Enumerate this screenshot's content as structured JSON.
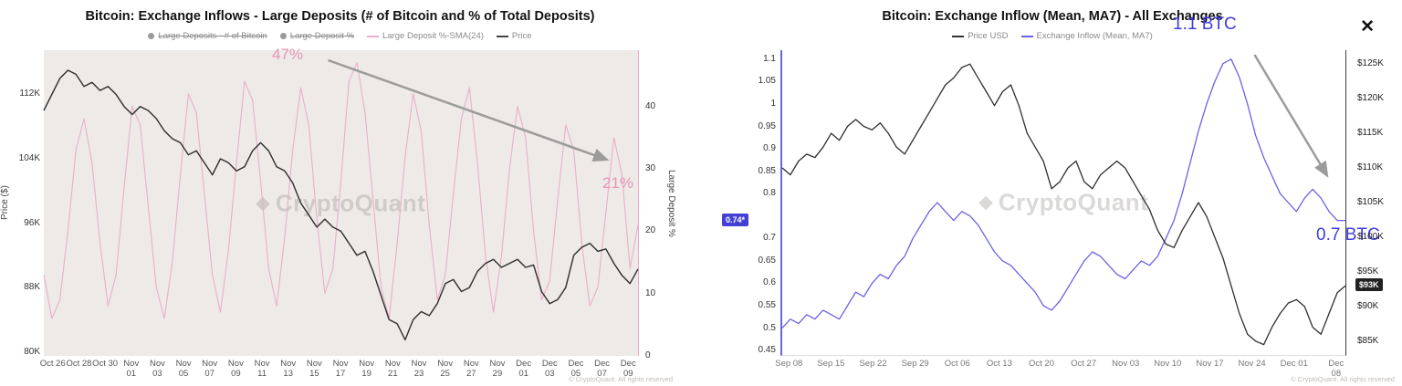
{
  "page": {
    "watermark": "CryptoQuant",
    "copyright": "© CryptoQuant. All rights reserved",
    "icons": {
      "close": "✕",
      "logo": "◆"
    }
  },
  "chart_data": [
    {
      "type": "line",
      "title": "Bitcoin: Exchange Inflows - Large Deposits (# of Bitcoin and % of Total Deposits)",
      "legend": [
        {
          "label": "Large Deposits - # of Bitcoin",
          "marker": "dot",
          "color": "#9a9a9a",
          "struck": true
        },
        {
          "label": "Large Deposit %",
          "marker": "dot",
          "color": "#9a9a9a",
          "struck": true
        },
        {
          "label": "Large Deposit %-SMA(24)",
          "marker": "line",
          "color": "#ecaecb",
          "struck": false
        },
        {
          "label": "Price",
          "marker": "line",
          "color": "#444444",
          "struck": false
        }
      ],
      "x_tick_inline_prefix": "Oct",
      "x_ticks": [
        "Oct 26",
        "Oct 28",
        "Oct 30",
        "Nov 01",
        "Nov 03",
        "Nov 05",
        "Nov 07",
        "Nov 09",
        "Nov 11",
        "Nov 13",
        "Nov 15",
        "Nov 17",
        "Nov 19",
        "Nov 21",
        "Nov 23",
        "Nov 25",
        "Nov 27",
        "Nov 29",
        "Dec 01",
        "Dec 03",
        "Dec 05",
        "Dec 07",
        "Dec 09"
      ],
      "y_axis_left": {
        "title": "Price ($)",
        "min": 79.5,
        "max": 117.5,
        "ticks": [
          {
            "label": "112K",
            "value": 112
          },
          {
            "label": "104K",
            "value": 104
          },
          {
            "label": "96K",
            "value": 96
          },
          {
            "label": "88K",
            "value": 88
          },
          {
            "label": "80K",
            "value": 80
          }
        ]
      },
      "y_axis_right": {
        "title": "Large Deposit %",
        "min": 0,
        "max": 49,
        "ticks": [
          {
            "label": "40",
            "value": 40
          },
          {
            "label": "30",
            "value": 30
          },
          {
            "label": "20",
            "value": 20
          },
          {
            "label": "10",
            "value": 10
          },
          {
            "label": "0",
            "value": 0
          }
        ]
      },
      "series": [
        {
          "name": "Large Deposit %-SMA(24)",
          "axis": "right",
          "color": "#ecaecb",
          "width": 1.1,
          "values": [
            13,
            6,
            9,
            20,
            33,
            38,
            31,
            18,
            8,
            13,
            27,
            40,
            37,
            24,
            11,
            6,
            15,
            29,
            42,
            39,
            26,
            13,
            7,
            17,
            31,
            44,
            41,
            28,
            14,
            8,
            19,
            33,
            43,
            37,
            22,
            10,
            14,
            28,
            44,
            47,
            39,
            25,
            11,
            6,
            18,
            32,
            42,
            36,
            21,
            9,
            13,
            26,
            38,
            43,
            31,
            16,
            7,
            16,
            30,
            40,
            35,
            20,
            9,
            12,
            25,
            37,
            33,
            18,
            8,
            11,
            23,
            35,
            29,
            14,
            21
          ]
        },
        {
          "name": "Price",
          "axis": "left",
          "color": "#2e2e2e",
          "width": 1.4,
          "values": [
            110,
            112,
            114,
            115,
            114.5,
            113,
            113.5,
            112.5,
            113,
            112,
            110.5,
            109.5,
            110.5,
            110,
            109,
            107.5,
            106.5,
            106,
            104.5,
            105,
            103.5,
            102,
            104,
            103.5,
            102.5,
            103,
            105,
            106,
            105,
            103,
            102.5,
            101,
            98.5,
            97,
            95.5,
            96.5,
            95.5,
            95,
            93.5,
            92,
            92.5,
            90,
            87,
            84,
            83.5,
            81.5,
            84,
            85,
            84.5,
            86,
            88.5,
            89,
            87.5,
            88,
            90,
            91,
            91.5,
            90.5,
            91,
            91.5,
            90.5,
            90.8,
            87.5,
            86,
            86.5,
            88,
            92,
            93,
            93.5,
            92.5,
            92.8,
            91,
            89.5,
            88.5,
            90.3
          ]
        }
      ],
      "annotations": {
        "peak": "47%",
        "end": "21%"
      }
    },
    {
      "type": "line",
      "title": "Bitcoin: Exchange Inflow (Mean, MA7) - All Exchanges",
      "legend": [
        {
          "label": "Price USD",
          "marker": "line",
          "color": "#333333",
          "struck": false
        },
        {
          "label": "Exchange Inflow (Mean, MA7)",
          "marker": "line",
          "color": "#6b62e3",
          "struck": false
        }
      ],
      "x_ticks": [
        "Sep 08",
        "Sep 15",
        "Sep 22",
        "Sep 29",
        "Oct 06",
        "Oct 13",
        "Oct 20",
        "Oct 27",
        "Nov 03",
        "Nov 10",
        "Nov 17",
        "Nov 24",
        "Dec 01",
        "Dec 08"
      ],
      "y_axis_left": {
        "title": "",
        "min": 0.44,
        "max": 1.12,
        "ticks": [
          {
            "label": "1.1",
            "value": 1.1
          },
          {
            "label": "1.05",
            "value": 1.05
          },
          {
            "label": "1",
            "value": 1
          },
          {
            "label": "0.95",
            "value": 0.95
          },
          {
            "label": "0.9",
            "value": 0.9
          },
          {
            "label": "0.85",
            "value": 0.85
          },
          {
            "label": "0.8",
            "value": 0.8
          },
          {
            "label": "0.7",
            "value": 0.7
          },
          {
            "label": "0.65",
            "value": 0.65
          },
          {
            "label": "0.6",
            "value": 0.6
          },
          {
            "label": "0.55",
            "value": 0.55
          },
          {
            "label": "0.5",
            "value": 0.5
          },
          {
            "label": "0.45",
            "value": 0.45
          }
        ]
      },
      "y_axis_right": {
        "title": "",
        "min": 83,
        "max": 127,
        "ticks": [
          {
            "label": "$125K",
            "value": 125
          },
          {
            "label": "$120K",
            "value": 120
          },
          {
            "label": "$115K",
            "value": 115
          },
          {
            "label": "$110K",
            "value": 110
          },
          {
            "label": "$105K",
            "value": 105
          },
          {
            "label": "$100K",
            "value": 100
          },
          {
            "label": "$95K",
            "value": 95
          },
          {
            "label": "$90K",
            "value": 90
          },
          {
            "label": "$85K",
            "value": 85
          }
        ]
      },
      "series": [
        {
          "name": "Exchange Inflow (Mean, MA7)",
          "axis": "left",
          "color": "#6b62e3",
          "width": 1.3,
          "values": [
            0.5,
            0.52,
            0.51,
            0.53,
            0.52,
            0.54,
            0.53,
            0.52,
            0.55,
            0.58,
            0.57,
            0.6,
            0.62,
            0.61,
            0.64,
            0.66,
            0.7,
            0.73,
            0.76,
            0.78,
            0.76,
            0.74,
            0.76,
            0.75,
            0.73,
            0.7,
            0.67,
            0.65,
            0.64,
            0.62,
            0.6,
            0.58,
            0.55,
            0.54,
            0.56,
            0.59,
            0.62,
            0.65,
            0.67,
            0.66,
            0.64,
            0.62,
            0.61,
            0.63,
            0.65,
            0.64,
            0.66,
            0.7,
            0.74,
            0.8,
            0.87,
            0.94,
            1.0,
            1.05,
            1.09,
            1.1,
            1.06,
            1.0,
            0.93,
            0.88,
            0.84,
            0.8,
            0.78,
            0.76,
            0.79,
            0.81,
            0.79,
            0.76,
            0.74,
            0.74
          ]
        },
        {
          "name": "Price USD",
          "axis": "right",
          "color": "#2e2e2e",
          "width": 1.3,
          "values": [
            110,
            109,
            111,
            112,
            111.5,
            113,
            115,
            114,
            116,
            117,
            116,
            115.5,
            116.5,
            115,
            113,
            112,
            114,
            116,
            118,
            120,
            122,
            123,
            124.5,
            125,
            123,
            121,
            119,
            121,
            122,
            119,
            115,
            113,
            111,
            107,
            108,
            110,
            111,
            108,
            107,
            109,
            110,
            111,
            110,
            108,
            106,
            104,
            101,
            99,
            98.5,
            101,
            103,
            105,
            103,
            100,
            97,
            93,
            89,
            86,
            85,
            84.5,
            87,
            89,
            90.5,
            91,
            90,
            87,
            86,
            89,
            92,
            93
          ]
        }
      ],
      "badges": [
        {
          "label": "0.74*",
          "value": 0.74,
          "axis": "left",
          "bg": "#4340d6"
        },
        {
          "label": "$93K",
          "value": 93,
          "axis": "right",
          "bg": "#222222"
        }
      ],
      "annotations": {
        "peak": "1.1 BTC",
        "end": "0.7 BTC"
      }
    }
  ]
}
